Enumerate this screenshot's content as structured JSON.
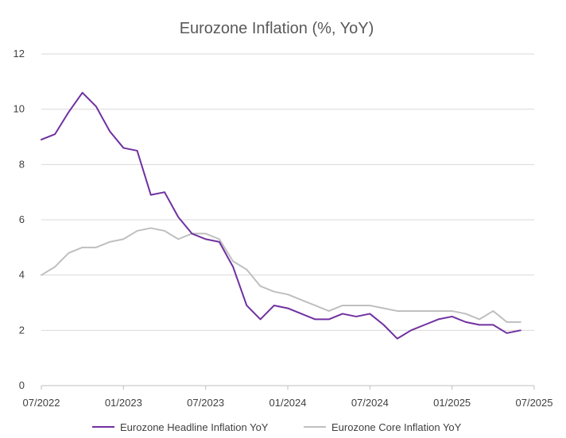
{
  "chart_data": {
    "type": "line",
    "title": "Eurozone Inflation (%, YoY)",
    "xlabel": "",
    "ylabel": "",
    "ylim": [
      0,
      12
    ],
    "yticks": [
      0,
      2,
      4,
      6,
      8,
      10,
      12
    ],
    "xlim": [
      "2022-07",
      "2025-07"
    ],
    "xticks": [
      "07/2022",
      "01/2023",
      "07/2023",
      "01/2024",
      "07/2024",
      "01/2025",
      "07/2025"
    ],
    "grid": "horizontal",
    "legend_position": "bottom",
    "x": [
      "2022-07",
      "2022-08",
      "2022-09",
      "2022-10",
      "2022-11",
      "2022-12",
      "2023-01",
      "2023-02",
      "2023-03",
      "2023-04",
      "2023-05",
      "2023-06",
      "2023-07",
      "2023-08",
      "2023-09",
      "2023-10",
      "2023-11",
      "2023-12",
      "2024-01",
      "2024-02",
      "2024-03",
      "2024-04",
      "2024-05",
      "2024-06",
      "2024-07",
      "2024-08",
      "2024-09",
      "2024-10",
      "2024-11",
      "2024-12",
      "2025-01",
      "2025-02",
      "2025-03",
      "2025-04",
      "2025-05",
      "2025-06"
    ],
    "series": [
      {
        "name": "Eurozone Headline Inflation YoY",
        "color": "#7030a0",
        "values": [
          8.9,
          9.1,
          9.9,
          10.6,
          10.1,
          9.2,
          8.6,
          8.5,
          6.9,
          7.0,
          6.1,
          5.5,
          5.3,
          5.2,
          4.3,
          2.9,
          2.4,
          2.9,
          2.8,
          2.6,
          2.4,
          2.4,
          2.6,
          2.5,
          2.6,
          2.2,
          1.7,
          2.0,
          2.2,
          2.4,
          2.5,
          2.3,
          2.2,
          2.2,
          1.9,
          2.0
        ]
      },
      {
        "name": "Eurozone Core Inflation YoY",
        "color": "#bfbfbf",
        "values": [
          4.0,
          4.3,
          4.8,
          5.0,
          5.0,
          5.2,
          5.3,
          5.6,
          5.7,
          5.6,
          5.3,
          5.5,
          5.5,
          5.3,
          4.5,
          4.2,
          3.6,
          3.4,
          3.3,
          3.1,
          2.9,
          2.7,
          2.9,
          2.9,
          2.9,
          2.8,
          2.7,
          2.7,
          2.7,
          2.7,
          2.7,
          2.6,
          2.4,
          2.7,
          2.3,
          2.3
        ]
      }
    ]
  }
}
